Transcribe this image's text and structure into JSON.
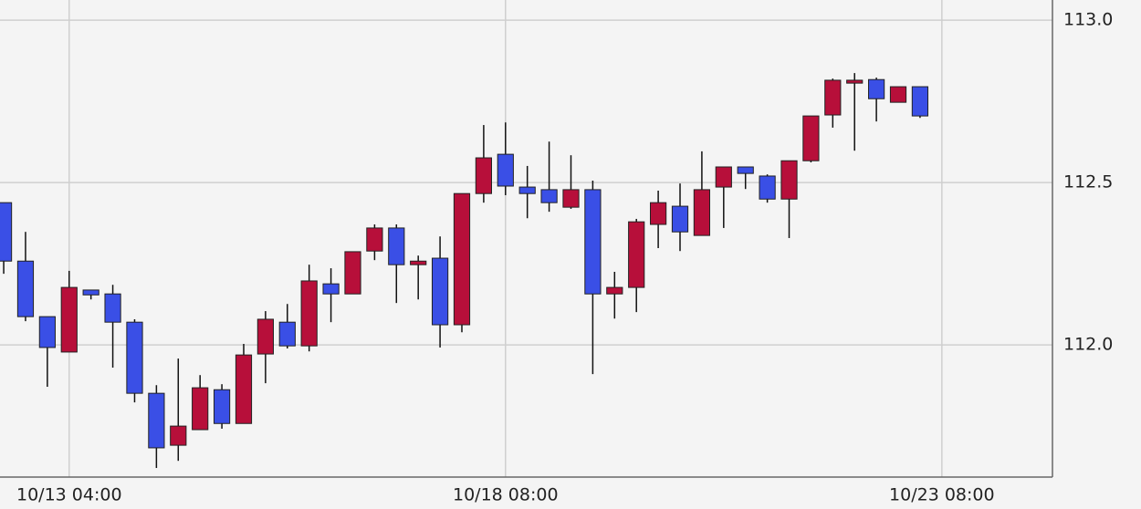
{
  "chart_data": {
    "type": "candlestick",
    "x": [
      0,
      1,
      2,
      3,
      4,
      5,
      6,
      7,
      8,
      9,
      10,
      11,
      12,
      13,
      14,
      15,
      16,
      17,
      18,
      19,
      20,
      21,
      22,
      23,
      24,
      25,
      26,
      27,
      28,
      29,
      30,
      31,
      32,
      33,
      34,
      35,
      36,
      37,
      38,
      39,
      40,
      41,
      42
    ],
    "open": [
      112.438,
      112.258,
      112.087,
      111.978,
      112.169,
      112.157,
      112.07,
      111.851,
      111.691,
      111.739,
      111.862,
      111.758,
      111.972,
      112.07,
      111.997,
      112.188,
      112.157,
      112.289,
      112.36,
      112.247,
      112.267,
      112.062,
      112.466,
      112.587,
      112.486,
      112.478,
      112.424,
      112.478,
      112.157,
      112.177,
      112.371,
      112.427,
      112.337,
      112.486,
      112.548,
      112.52,
      112.449,
      112.567,
      112.708,
      112.806,
      112.817,
      112.747,
      112.795
    ],
    "high": [
      112.438,
      112.348,
      112.087,
      112.228,
      112.169,
      112.185,
      112.079,
      111.876,
      111.958,
      111.907,
      111.879,
      112.003,
      112.104,
      112.126,
      112.247,
      112.236,
      112.287,
      112.371,
      112.371,
      112.275,
      112.334,
      112.466,
      112.677,
      112.685,
      112.551,
      112.626,
      112.584,
      112.506,
      112.225,
      112.388,
      112.475,
      112.497,
      112.596,
      112.548,
      112.548,
      112.525,
      112.567,
      112.705,
      112.82,
      112.837,
      112.823,
      112.795,
      112.795
    ],
    "low": [
      112.219,
      112.073,
      111.871,
      111.978,
      112.14,
      111.93,
      111.823,
      111.621,
      111.643,
      111.739,
      111.742,
      111.758,
      111.882,
      111.989,
      111.98,
      112.07,
      112.157,
      112.261,
      112.129,
      112.14,
      111.992,
      112.039,
      112.438,
      112.461,
      112.39,
      112.41,
      112.419,
      111.91,
      112.081,
      112.101,
      112.298,
      112.289,
      112.337,
      112.36,
      112.48,
      112.438,
      112.329,
      112.562,
      112.669,
      112.598,
      112.688,
      112.747,
      112.699
    ],
    "close": [
      112.258,
      112.087,
      111.992,
      112.177,
      112.154,
      112.07,
      111.851,
      111.683,
      111.75,
      111.868,
      111.758,
      111.969,
      112.079,
      111.997,
      112.197,
      112.157,
      112.287,
      112.36,
      112.247,
      112.258,
      112.062,
      112.466,
      112.576,
      112.489,
      112.466,
      112.438,
      112.478,
      112.157,
      112.177,
      112.379,
      112.438,
      112.348,
      112.478,
      112.548,
      112.528,
      112.449,
      112.567,
      112.705,
      112.815,
      112.815,
      112.758,
      112.795,
      112.705
    ],
    "up_color": "#b70f3a",
    "down_color": "#3a4fe6",
    "xlim": [
      -0.17,
      48.07
    ],
    "xticks": [
      {
        "value": 3,
        "label": "10/13 04:00"
      },
      {
        "value": 23,
        "label": "10/18 08:00"
      },
      {
        "value": 43,
        "label": "10/23 08:00"
      }
    ],
    "ylim": [
      111.593,
      113.062
    ],
    "yticks": [
      {
        "value": 112,
        "label": "112.0"
      },
      112.5,
      {
        "value": 113,
        "label": "113.0"
      }
    ],
    "grid": true
  }
}
